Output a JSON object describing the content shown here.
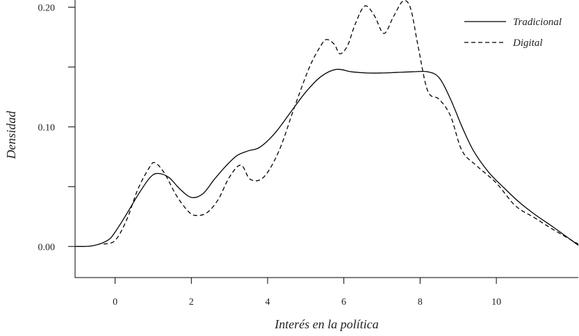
{
  "chart_data": {
    "type": "line",
    "title": "",
    "xlabel": "Interés en la política",
    "ylabel": "Densidad",
    "xlim": [
      -1.05,
      12.15
    ],
    "ylim": [
      -0.026,
      0.206
    ],
    "x_ticks": [
      0,
      2,
      4,
      6,
      8,
      10
    ],
    "x_tick_labels": [
      "0",
      "2",
      "4",
      "6",
      "8",
      "10"
    ],
    "y_ticks": [
      0.0,
      0.05,
      0.1,
      0.15,
      0.2
    ],
    "y_tick_labels": [
      "0.00",
      "",
      "0.10",
      "",
      "0.20"
    ],
    "grid": false,
    "legend_position": "top-right",
    "series": [
      {
        "name": "Tradicional",
        "line_style": "solid",
        "color": "#000000",
        "x": [
          -1.05,
          -0.6,
          -0.2,
          0.0,
          0.3,
          0.6,
          0.9,
          1.1,
          1.4,
          1.7,
          2.0,
          2.3,
          2.6,
          2.9,
          3.2,
          3.5,
          3.8,
          4.2,
          4.6,
          5.0,
          5.4,
          5.8,
          6.2,
          6.6,
          7.0,
          7.4,
          7.8,
          8.2,
          8.5,
          8.8,
          9.1,
          9.4,
          9.8,
          10.2,
          10.6,
          11.0,
          11.5,
          12.15
        ],
        "y": [
          0.0,
          0.0005,
          0.005,
          0.012,
          0.027,
          0.043,
          0.057,
          0.061,
          0.058,
          0.048,
          0.041,
          0.044,
          0.056,
          0.067,
          0.076,
          0.08,
          0.083,
          0.095,
          0.112,
          0.129,
          0.142,
          0.148,
          0.146,
          0.145,
          0.145,
          0.1455,
          0.146,
          0.146,
          0.141,
          0.123,
          0.1,
          0.08,
          0.062,
          0.049,
          0.037,
          0.027,
          0.016,
          0.001
        ]
      },
      {
        "name": "Digital",
        "line_style": "dashed",
        "color": "#000000",
        "x": [
          -0.3,
          0.0,
          0.3,
          0.6,
          0.9,
          1.05,
          1.3,
          1.6,
          1.9,
          2.1,
          2.4,
          2.7,
          3.0,
          3.3,
          3.55,
          3.9,
          4.3,
          4.7,
          5.1,
          5.4,
          5.55,
          5.75,
          5.9,
          6.1,
          6.3,
          6.55,
          6.8,
          7.05,
          7.3,
          7.55,
          7.75,
          7.95,
          8.2,
          8.5,
          8.8,
          9.1,
          9.5,
          10.0,
          10.5,
          11.0,
          11.5,
          12.15
        ],
        "y": [
          0.002,
          0.005,
          0.022,
          0.048,
          0.066,
          0.07,
          0.061,
          0.043,
          0.03,
          0.026,
          0.028,
          0.039,
          0.058,
          0.068,
          0.056,
          0.058,
          0.08,
          0.116,
          0.15,
          0.168,
          0.173,
          0.169,
          0.161,
          0.168,
          0.186,
          0.201,
          0.193,
          0.178,
          0.192,
          0.205,
          0.199,
          0.167,
          0.13,
          0.123,
          0.109,
          0.08,
          0.067,
          0.053,
          0.034,
          0.024,
          0.014,
          0.002
        ]
      }
    ]
  }
}
